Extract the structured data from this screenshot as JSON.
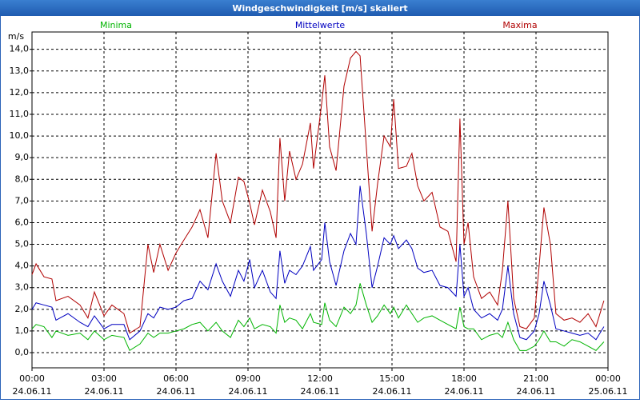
{
  "chart_data": {
    "type": "line",
    "title": "Windgeschwindigkeit [m/s] skaliert",
    "y_label": "m/s",
    "grid": true,
    "xlim": [
      0,
      24
    ],
    "ylim": [
      -0.7,
      14.8
    ],
    "xticks": [
      {
        "value": 0,
        "label": [
          "00:00",
          "24.06.11"
        ]
      },
      {
        "value": 3,
        "label": [
          "03:00",
          "24.06.11"
        ]
      },
      {
        "value": 6,
        "label": [
          "06:00",
          "24.06.11"
        ]
      },
      {
        "value": 9,
        "label": [
          "09:00",
          "24.06.11"
        ]
      },
      {
        "value": 12,
        "label": [
          "12:00",
          "24.06.11"
        ]
      },
      {
        "value": 15,
        "label": [
          "15:00",
          "24.06.11"
        ]
      },
      {
        "value": 18,
        "label": [
          "18:00",
          "24.06.11"
        ]
      },
      {
        "value": 21,
        "label": [
          "21:00",
          "24.06.11"
        ]
      },
      {
        "value": 24,
        "label": [
          "00:00",
          "25.06.11"
        ]
      }
    ],
    "yticks": [
      {
        "value": 0,
        "label": "0,0"
      },
      {
        "value": 1,
        "label": "1,0"
      },
      {
        "value": 2,
        "label": "2,0"
      },
      {
        "value": 3,
        "label": "3,0"
      },
      {
        "value": 4,
        "label": "4,0"
      },
      {
        "value": 5,
        "label": "5,0"
      },
      {
        "value": 6,
        "label": "6,0"
      },
      {
        "value": 7,
        "label": "7,0"
      },
      {
        "value": 8,
        "label": "8,0"
      },
      {
        "value": 9,
        "label": "9,0"
      },
      {
        "value": 10,
        "label": "10,0"
      },
      {
        "value": 11,
        "label": "11,0"
      },
      {
        "value": 12,
        "label": "12,0"
      },
      {
        "value": 13,
        "label": "13,0"
      },
      {
        "value": 14,
        "label": "14,0"
      }
    ],
    "x": [
      0.0,
      0.17,
      0.5,
      0.83,
      1.0,
      1.5,
      2.0,
      2.33,
      2.6,
      3.0,
      3.33,
      3.83,
      4.07,
      4.5,
      4.83,
      5.07,
      5.33,
      5.67,
      6.0,
      6.33,
      6.67,
      7.0,
      7.33,
      7.67,
      7.93,
      8.27,
      8.6,
      8.83,
      9.07,
      9.27,
      9.6,
      9.93,
      10.17,
      10.33,
      10.53,
      10.73,
      11.0,
      11.27,
      11.6,
      11.73,
      12.07,
      12.2,
      12.4,
      12.67,
      13.0,
      13.27,
      13.5,
      13.67,
      13.93,
      14.17,
      14.4,
      14.67,
      14.93,
      15.07,
      15.27,
      15.6,
      15.83,
      16.07,
      16.33,
      16.67,
      17.0,
      17.33,
      17.67,
      17.83,
      18.0,
      18.17,
      18.4,
      18.73,
      19.07,
      19.4,
      19.6,
      19.83,
      20.07,
      20.33,
      20.6,
      20.93,
      21.13,
      21.33,
      21.6,
      21.83,
      22.17,
      22.5,
      22.83,
      23.17,
      23.5,
      23.83
    ],
    "series": [
      {
        "name": "Minima",
        "color": "#00b400",
        "values": [
          1.1,
          1.3,
          1.2,
          0.7,
          1.0,
          0.8,
          0.9,
          0.6,
          1.0,
          0.6,
          0.8,
          0.7,
          0.1,
          0.4,
          0.9,
          0.7,
          0.9,
          0.9,
          1.0,
          1.1,
          1.3,
          1.4,
          1.0,
          1.4,
          1.0,
          0.7,
          1.5,
          1.2,
          1.6,
          1.1,
          1.3,
          1.2,
          0.9,
          2.2,
          1.4,
          1.6,
          1.5,
          1.1,
          1.8,
          1.4,
          1.3,
          2.3,
          1.5,
          1.2,
          2.1,
          1.8,
          2.2,
          3.2,
          2.2,
          1.4,
          1.7,
          2.2,
          1.8,
          2.1,
          1.6,
          2.2,
          1.8,
          1.4,
          1.6,
          1.7,
          1.5,
          1.3,
          1.1,
          2.1,
          1.2,
          1.1,
          1.1,
          0.6,
          0.8,
          0.9,
          0.7,
          1.4,
          0.6,
          0.1,
          0.1,
          0.3,
          0.6,
          1.0,
          0.5,
          0.5,
          0.3,
          0.6,
          0.5,
          0.3,
          0.1,
          0.5
        ]
      },
      {
        "name": "Mittelwerte",
        "color": "#0000c0",
        "values": [
          2.0,
          2.3,
          2.2,
          2.1,
          1.5,
          1.8,
          1.4,
          1.2,
          1.7,
          1.1,
          1.3,
          1.3,
          0.6,
          1.0,
          1.8,
          1.6,
          2.1,
          2.0,
          2.1,
          2.4,
          2.5,
          3.3,
          2.9,
          4.1,
          3.3,
          2.6,
          3.8,
          3.3,
          4.3,
          3.0,
          3.8,
          2.8,
          2.5,
          4.7,
          3.2,
          3.8,
          3.6,
          4.0,
          4.9,
          3.8,
          4.3,
          6.0,
          4.2,
          3.1,
          4.7,
          5.5,
          5.0,
          7.7,
          5.5,
          3.0,
          4.0,
          5.3,
          5.0,
          5.4,
          4.8,
          5.2,
          4.8,
          3.9,
          3.7,
          3.8,
          3.1,
          3.0,
          2.6,
          5.0,
          2.6,
          3.0,
          2.0,
          1.6,
          1.8,
          1.5,
          2.0,
          4.0,
          1.8,
          0.7,
          0.6,
          1.0,
          1.8,
          3.3,
          2.2,
          1.1,
          1.0,
          0.9,
          0.8,
          0.9,
          0.6,
          1.2
        ]
      },
      {
        "name": "Maxima",
        "color": "#b00000",
        "values": [
          3.6,
          4.1,
          3.5,
          3.4,
          2.4,
          2.6,
          2.2,
          1.6,
          2.8,
          1.7,
          2.2,
          1.8,
          0.9,
          1.2,
          5.0,
          3.7,
          5.0,
          3.8,
          4.6,
          5.2,
          5.8,
          6.6,
          5.3,
          9.2,
          7.0,
          6.0,
          8.1,
          7.9,
          6.9,
          5.9,
          7.5,
          6.5,
          5.3,
          9.9,
          7.0,
          9.3,
          8.0,
          8.7,
          10.6,
          8.5,
          11.5,
          12.8,
          9.5,
          8.4,
          12.3,
          13.6,
          13.9,
          13.7,
          9.5,
          5.6,
          7.8,
          10.0,
          9.5,
          11.7,
          8.5,
          8.6,
          9.2,
          7.7,
          7.0,
          7.4,
          5.8,
          5.6,
          4.2,
          10.8,
          5.0,
          6.0,
          3.5,
          2.5,
          2.8,
          2.2,
          3.8,
          7.0,
          2.5,
          1.2,
          1.1,
          1.6,
          4.0,
          6.7,
          5.0,
          1.8,
          1.5,
          1.6,
          1.4,
          1.8,
          1.2,
          2.4
        ]
      }
    ]
  }
}
